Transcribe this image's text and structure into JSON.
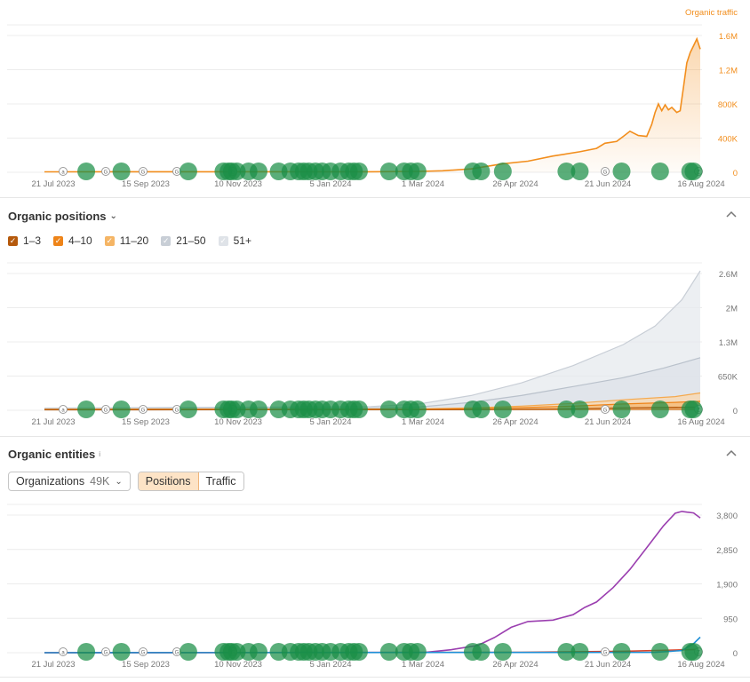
{
  "colors": {
    "traffic": "#f28e1d",
    "pos_1_3": "#b5590c",
    "pos_4_10": "#ee8419",
    "pos_11_20": "#f5b565",
    "pos_21_50": "#c8ced6",
    "pos_51_plus": "#dfe3e8",
    "entity_main": "#9b3fb0",
    "entity_blue": "#1f8fd6",
    "entity_red": "#d8432b",
    "marker": "#1a8f47",
    "grid": "#ececec",
    "axis_text": "#777777"
  },
  "x_ticks": [
    "21 Jul 2023",
    "15 Sep 2023",
    "10 Nov 2023",
    "5 Jan 2024",
    "1 Mar 2024",
    "26 Apr 2024",
    "21 Jun 2024",
    "16 Aug 2024"
  ],
  "markers": {
    "letters": [
      "a",
      "G",
      "G",
      "G",
      "G",
      "G",
      "Z"
    ],
    "dates": [
      "2023-08-15",
      "2023-09-05",
      "2023-10-15",
      "2023-11-05",
      "2023-11-08",
      "2023-11-10",
      "2023-11-13",
      "2023-11-20",
      "2023-11-26",
      "2023-12-08",
      "2023-12-15",
      "2023-12-20",
      "2023-12-23",
      "2023-12-26",
      "2023-12-30",
      "2024-01-03",
      "2024-01-08",
      "2024-01-14",
      "2024-01-19",
      "2024-01-22",
      "2024-01-25",
      "2024-02-12",
      "2024-02-21",
      "2024-02-25",
      "2024-02-29",
      "2024-04-02",
      "2024-04-07",
      "2024-04-20",
      "2024-05-28",
      "2024-06-05",
      "2024-06-30",
      "2024-07-23",
      "2024-08-10",
      "2024-08-12"
    ]
  },
  "chart_data": [
    {
      "type": "area",
      "x_start": "2023-07-21",
      "x_end": "2024-08-16",
      "series_label": "Organic traffic",
      "y_ticks": [
        "0",
        "400K",
        "800K",
        "1.2M",
        "1.6M"
      ],
      "ylim": [
        0,
        1600000
      ],
      "series": [
        {
          "name": "Organic traffic",
          "points": [
            [
              "2023-07-21",
              5000
            ],
            [
              "2024-02-01",
              6000
            ],
            [
              "2024-03-01",
              10000
            ],
            [
              "2024-03-15",
              18000
            ],
            [
              "2024-04-01",
              40000
            ],
            [
              "2024-04-20",
              100000
            ],
            [
              "2024-05-05",
              130000
            ],
            [
              "2024-05-20",
              190000
            ],
            [
              "2024-06-05",
              240000
            ],
            [
              "2024-06-15",
              280000
            ],
            [
              "2024-06-20",
              340000
            ],
            [
              "2024-06-27",
              360000
            ],
            [
              "2024-07-01",
              420000
            ],
            [
              "2024-07-05",
              480000
            ],
            [
              "2024-07-10",
              430000
            ],
            [
              "2024-07-15",
              420000
            ],
            [
              "2024-07-18",
              560000
            ],
            [
              "2024-07-20",
              700000
            ],
            [
              "2024-07-22",
              800000
            ],
            [
              "2024-07-24",
              720000
            ],
            [
              "2024-07-26",
              790000
            ],
            [
              "2024-07-28",
              730000
            ],
            [
              "2024-07-30",
              760000
            ],
            [
              "2024-08-02",
              700000
            ],
            [
              "2024-08-04",
              720000
            ],
            [
              "2024-08-06",
              1000000
            ],
            [
              "2024-08-08",
              1280000
            ],
            [
              "2024-08-10",
              1400000
            ],
            [
              "2024-08-12",
              1480000
            ],
            [
              "2024-08-14",
              1560000
            ],
            [
              "2024-08-16",
              1440000
            ]
          ]
        }
      ]
    },
    {
      "type": "area",
      "title": "Organic positions",
      "x_start": "2023-07-21",
      "x_end": "2024-08-16",
      "y_ticks": [
        "0",
        "650K",
        "1.3M",
        "2M",
        "2.6M"
      ],
      "ylim": [
        0,
        2600000
      ],
      "legend": [
        "1–3",
        "4–10",
        "11–20",
        "21–50",
        "51+"
      ],
      "series": [
        {
          "name": "51+",
          "points": [
            [
              "2023-07-21",
              40000
            ],
            [
              "2024-02-01",
              70000
            ],
            [
              "2024-03-01",
              120000
            ],
            [
              "2024-04-01",
              280000
            ],
            [
              "2024-05-01",
              520000
            ],
            [
              "2024-06-01",
              850000
            ],
            [
              "2024-07-01",
              1250000
            ],
            [
              "2024-07-20",
              1600000
            ],
            [
              "2024-08-05",
              2100000
            ],
            [
              "2024-08-16",
              2650000
            ]
          ]
        },
        {
          "name": "21–50",
          "points": [
            [
              "2023-07-21",
              30000
            ],
            [
              "2024-02-01",
              40000
            ],
            [
              "2024-03-01",
              60000
            ],
            [
              "2024-04-01",
              150000
            ],
            [
              "2024-05-01",
              280000
            ],
            [
              "2024-06-01",
              450000
            ],
            [
              "2024-07-01",
              620000
            ],
            [
              "2024-07-25",
              800000
            ],
            [
              "2024-08-16",
              1000000
            ]
          ]
        },
        {
          "name": "11–20",
          "points": [
            [
              "2023-07-21",
              20000
            ],
            [
              "2024-03-01",
              25000
            ],
            [
              "2024-04-01",
              45000
            ],
            [
              "2024-05-01",
              80000
            ],
            [
              "2024-06-01",
              130000
            ],
            [
              "2024-07-01",
              200000
            ],
            [
              "2024-08-01",
              260000
            ],
            [
              "2024-08-16",
              330000
            ]
          ]
        },
        {
          "name": "4–10",
          "points": [
            [
              "2023-07-21",
              15000
            ],
            [
              "2024-03-01",
              18000
            ],
            [
              "2024-04-01",
              30000
            ],
            [
              "2024-05-01",
              50000
            ],
            [
              "2024-06-01",
              80000
            ],
            [
              "2024-07-01",
              120000
            ],
            [
              "2024-08-01",
              150000
            ],
            [
              "2024-08-16",
              170000
            ]
          ]
        },
        {
          "name": "1–3",
          "points": [
            [
              "2023-07-21",
              8000
            ],
            [
              "2024-04-01",
              12000
            ],
            [
              "2024-06-01",
              25000
            ],
            [
              "2024-07-01",
              45000
            ],
            [
              "2024-08-16",
              60000
            ]
          ]
        }
      ]
    },
    {
      "type": "line",
      "title": "Organic entities",
      "x_start": "2023-07-21",
      "x_end": "2024-08-16",
      "y_ticks": [
        "0",
        "950",
        "1,900",
        "2,850",
        "3,800"
      ],
      "ylim": [
        0,
        3800
      ],
      "series": [
        {
          "color_key": "entity_main",
          "points": [
            [
              "2023-07-21",
              0
            ],
            [
              "2024-03-05",
              10
            ],
            [
              "2024-03-20",
              80
            ],
            [
              "2024-04-05",
              200
            ],
            [
              "2024-04-15",
              420
            ],
            [
              "2024-04-25",
              700
            ],
            [
              "2024-05-05",
              860
            ],
            [
              "2024-05-20",
              900
            ],
            [
              "2024-06-01",
              1050
            ],
            [
              "2024-06-08",
              1250
            ],
            [
              "2024-06-15",
              1400
            ],
            [
              "2024-06-25",
              1800
            ],
            [
              "2024-07-05",
              2300
            ],
            [
              "2024-07-15",
              2900
            ],
            [
              "2024-07-25",
              3500
            ],
            [
              "2024-08-01",
              3850
            ],
            [
              "2024-08-05",
              3900
            ],
            [
              "2024-08-08",
              3880
            ],
            [
              "2024-08-12",
              3860
            ],
            [
              "2024-08-16",
              3720
            ]
          ]
        },
        {
          "color_key": "entity_red",
          "points": [
            [
              "2023-07-21",
              0
            ],
            [
              "2024-05-01",
              10
            ],
            [
              "2024-07-01",
              40
            ],
            [
              "2024-08-16",
              90
            ]
          ]
        },
        {
          "color_key": "entity_blue",
          "points": [
            [
              "2023-07-21",
              0
            ],
            [
              "2024-07-20",
              10
            ],
            [
              "2024-08-05",
              60
            ],
            [
              "2024-08-12",
              250
            ],
            [
              "2024-08-16",
              430
            ]
          ]
        }
      ]
    }
  ],
  "positions_section": {
    "title": "Organic positions",
    "legend": [
      {
        "label": "1–3",
        "color_key": "pos_1_3",
        "checked": true
      },
      {
        "label": "4–10",
        "color_key": "pos_4_10",
        "checked": true
      },
      {
        "label": "11–20",
        "color_key": "pos_11_20",
        "checked": true
      },
      {
        "label": "21–50",
        "color_key": "pos_21_50",
        "checked": true
      },
      {
        "label": "51+",
        "color_key": "pos_51_plus",
        "checked": true
      }
    ]
  },
  "entities_section": {
    "title": "Organic entities",
    "info": "i",
    "dropdown_label": "Organizations",
    "dropdown_count": "49K",
    "tabs": [
      {
        "label": "Positions",
        "active": true
      },
      {
        "label": "Traffic",
        "active": false
      }
    ]
  }
}
